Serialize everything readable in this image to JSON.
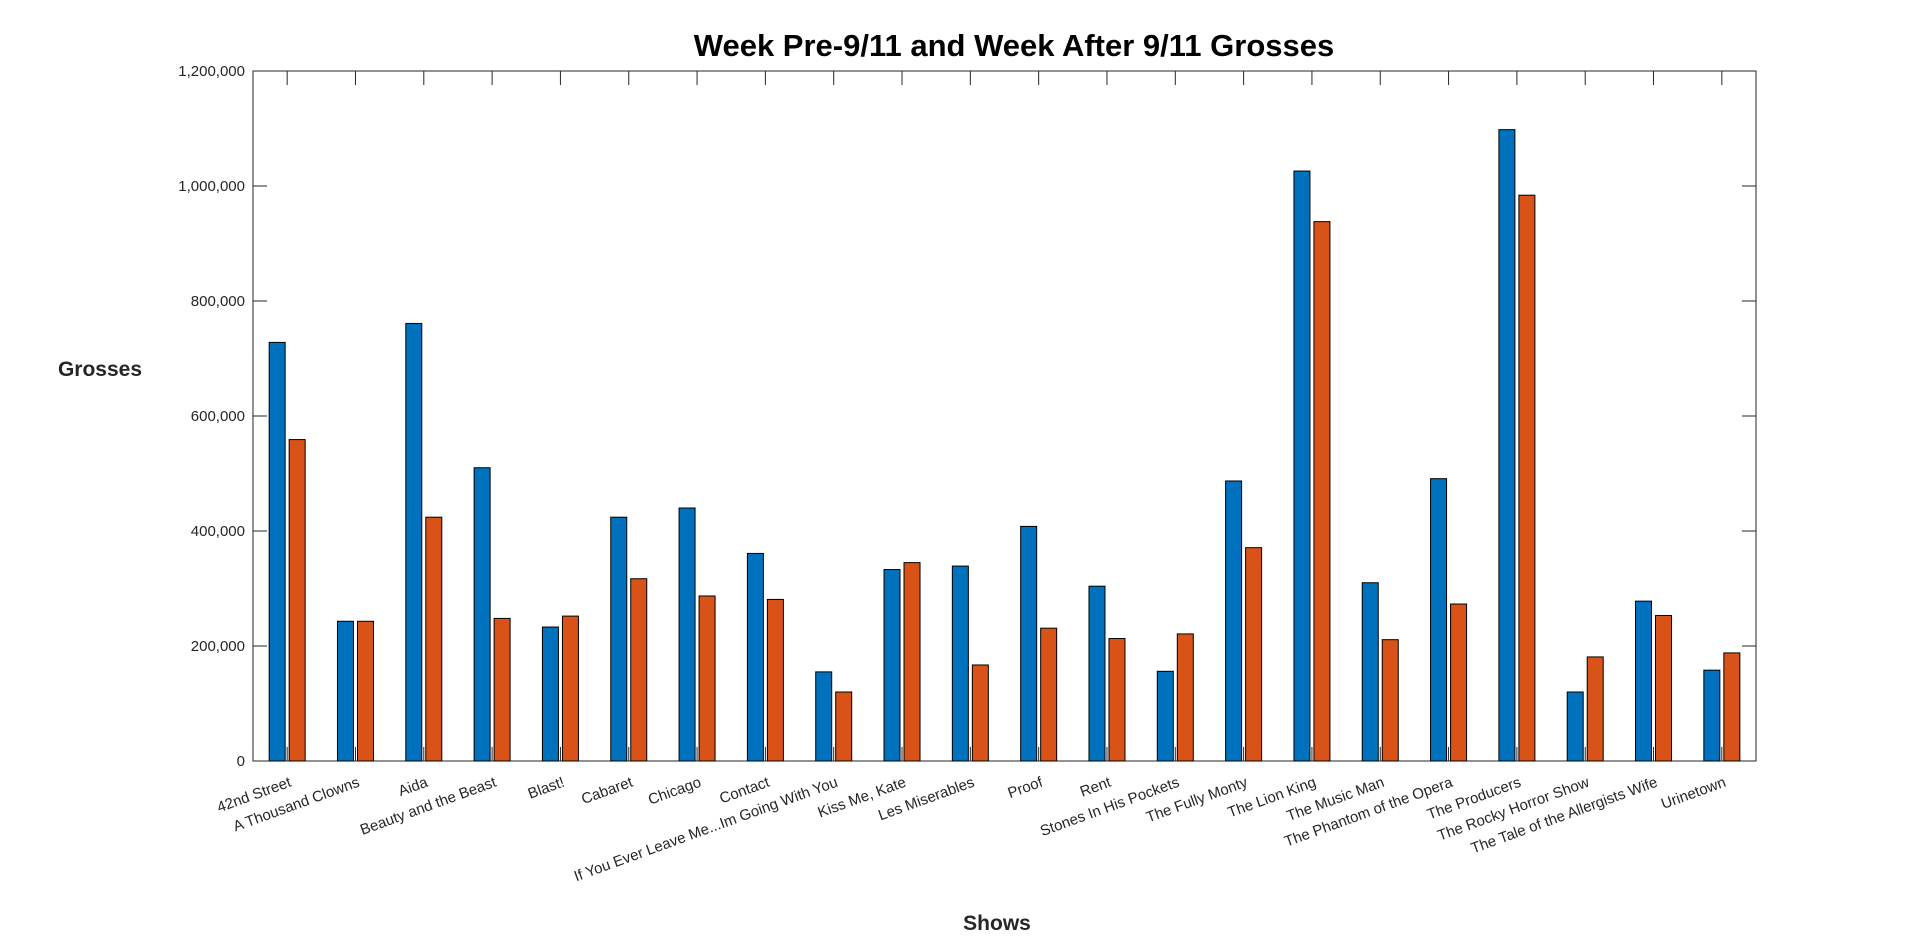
{
  "chart_data": {
    "type": "bar",
    "title": "Week Pre-9/11 and Week After 9/11 Grosses",
    "xlabel": "Shows",
    "ylabel": "Grosses",
    "ylim": [
      0,
      1200000
    ],
    "yticks": [
      0,
      200000,
      400000,
      600000,
      800000,
      1000000,
      1200000
    ],
    "ytick_labels": [
      "0",
      "200,000",
      "400,000",
      "600,000",
      "800,000",
      "1,000,000",
      "1,200,000"
    ],
    "grid": false,
    "legend": "none",
    "categories": [
      "42nd Street",
      "A Thousand Clowns",
      "Aida",
      "Beauty and the Beast",
      "Blast!",
      "Cabaret",
      "Chicago",
      "Contact",
      "If You Ever Leave Me...Im Going With You",
      "Kiss Me, Kate",
      "Les Miserables",
      "Proof",
      "Rent",
      "Stones In His Pockets",
      "The Fully Monty",
      "The Lion King",
      "The Music Man",
      "The Phantom of the Opera",
      "The Producers",
      "The Rocky Horror Show",
      "The Tale of the Allergists Wife",
      "Urinetown"
    ],
    "series": [
      {
        "color": "#0072BD",
        "values": [
          728000,
          243000,
          761000,
          510000,
          233000,
          424000,
          440000,
          361000,
          155000,
          333000,
          339000,
          408000,
          304000,
          156000,
          487000,
          1026000,
          310000,
          491000,
          1098000,
          120000,
          278000,
          158000
        ]
      },
      {
        "color": "#D95319",
        "values": [
          559000,
          243000,
          424000,
          248000,
          252000,
          317000,
          287000,
          281000,
          120000,
          345000,
          167000,
          231000,
          213000,
          221000,
          371000,
          938000,
          211000,
          273000,
          984000,
          181000,
          253000,
          188000
        ]
      }
    ]
  }
}
